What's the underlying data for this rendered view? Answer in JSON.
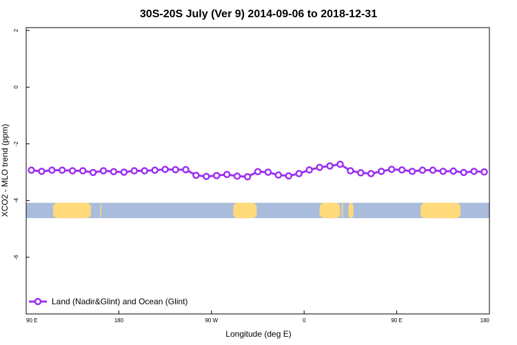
{
  "chart_data": {
    "type": "line",
    "title": "30S-20S July (Ver 9)   2014-09-06 to 2018-12-31",
    "xlabel": "Longitude (deg E)",
    "ylabel": "XCO2 - MLO trend (ppm)",
    "x_ticks": [
      {
        "value": 90,
        "label": "90 E"
      },
      {
        "value": 180,
        "label": "180"
      },
      {
        "value": 270,
        "label": "90 W"
      },
      {
        "value": 360,
        "label": "0"
      },
      {
        "value": 450,
        "label": "90 E"
      },
      {
        "value": 540,
        "label": "180"
      }
    ],
    "y_ticks": [
      {
        "value": 2,
        "label": "2"
      },
      {
        "value": 0,
        "label": "0"
      },
      {
        "value": -2,
        "label": "-2"
      },
      {
        "value": -4,
        "label": "-4"
      },
      {
        "value": -6,
        "label": "-6"
      }
    ],
    "xlim": [
      90,
      540
    ],
    "ylim": [
      -8,
      2.1
    ],
    "grid": false,
    "legend_position": "bottom-left",
    "series": [
      {
        "name": "Land (Nadir&Glint) and Ocean (Glint)",
        "color": "#9b30f0",
        "x": [
          95,
          105,
          115,
          125,
          135,
          145,
          155,
          165,
          175,
          185,
          195,
          205,
          215,
          225,
          235,
          245,
          255,
          265,
          275,
          285,
          295,
          305,
          315,
          325,
          335,
          345,
          355,
          365,
          375,
          385,
          395,
          405,
          415,
          425,
          435,
          445,
          455,
          465,
          475,
          485,
          495,
          505,
          515,
          525,
          535
        ],
        "y": [
          -2.93,
          -2.97,
          -2.93,
          -2.93,
          -2.95,
          -2.95,
          -3.01,
          -2.95,
          -2.98,
          -3.0,
          -2.95,
          -2.95,
          -2.93,
          -2.9,
          -2.91,
          -2.91,
          -3.11,
          -3.15,
          -3.12,
          -3.08,
          -3.14,
          -3.16,
          -2.98,
          -3.0,
          -3.1,
          -3.13,
          -3.05,
          -2.92,
          -2.83,
          -2.78,
          -2.72,
          -2.95,
          -3.02,
          -3.05,
          -2.97,
          -2.9,
          -2.92,
          -2.97,
          -2.93,
          -2.93,
          -2.97,
          -2.96,
          -3.01,
          -2.97,
          -2.99
        ]
      }
    ],
    "map_strip": {
      "ocean_color": "#a9bcdc",
      "land_color": "#ffd97a",
      "y_top": -4.08,
      "y_bottom": -4.62,
      "land_x_ranges": [
        [
          116,
          153
        ],
        [
          291,
          314
        ],
        [
          375,
          395
        ],
        [
          396.5,
          397.8
        ],
        [
          403,
          408
        ],
        [
          473,
          512
        ],
        [
          162,
          163
        ]
      ]
    }
  }
}
